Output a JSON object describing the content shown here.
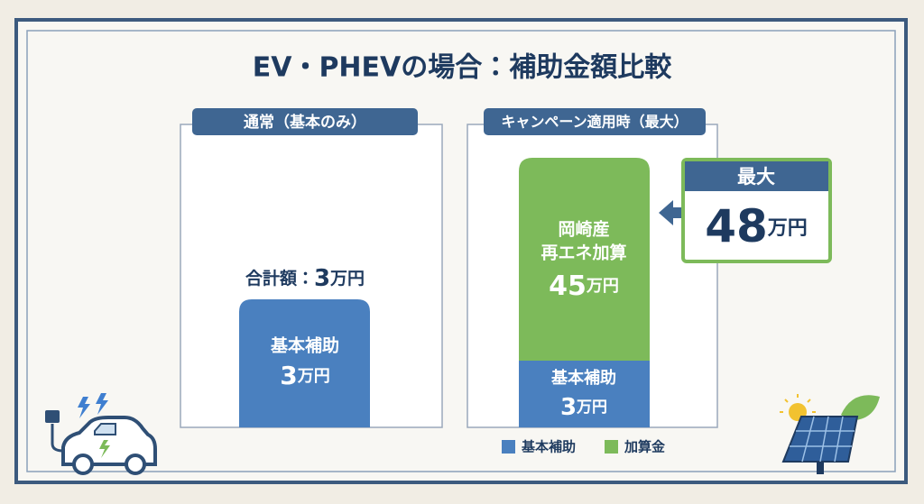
{
  "title": "EV・PHEVの場合：補助金額比較",
  "panels": [
    {
      "header": "通常（基本のみ）",
      "total_label": "合計額：",
      "total_amount": "3",
      "total_unit": "万円",
      "segments": [
        {
          "label_lines": [
            "基本補助"
          ],
          "amount": "3",
          "unit": "万円"
        }
      ]
    },
    {
      "header": "キャンペーン適用時（最大）",
      "segments": [
        {
          "label_lines": [
            "基本補助"
          ],
          "amount": "3",
          "unit": "万円"
        },
        {
          "label_lines": [
            "岡崎産",
            "再エネ加算"
          ],
          "amount": "45",
          "unit": "万円"
        }
      ],
      "callout": {
        "label": "最大",
        "amount": "48",
        "unit": "万円"
      }
    }
  ],
  "legend": [
    "基本補助",
    "加算金"
  ]
}
